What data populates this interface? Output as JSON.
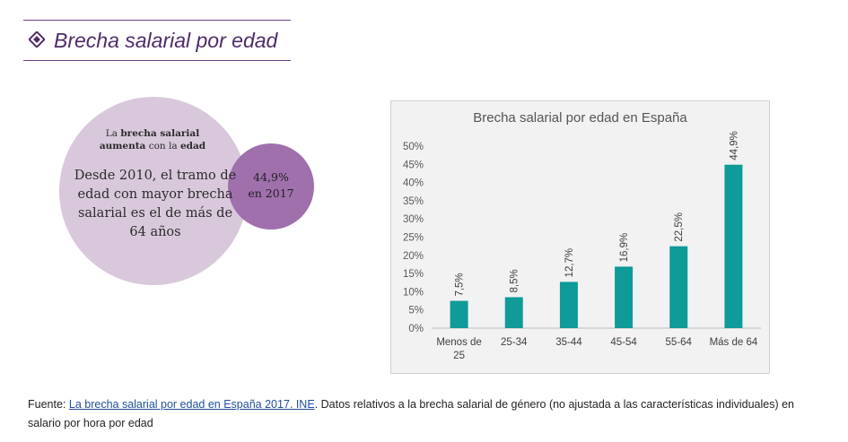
{
  "section": {
    "title": "Brecha salarial por edad",
    "accent_color": "#4f2c69",
    "icon": "diamond-icon"
  },
  "bubble": {
    "heading_pre": "La ",
    "heading_bold1": "brecha salarial",
    "heading_bold2": "aumenta",
    "heading_mid": " con la ",
    "heading_bold3": "edad",
    "text": "Desde 2010, el tramo de edad con mayor brecha salarial es el de más de 64 años",
    "stat_value": "44,9%",
    "stat_label": "en 2017",
    "big_color": "#d9c8dc",
    "small_color": "#a070ad"
  },
  "chart_data": {
    "type": "bar",
    "title": "Brecha salarial por edad en España",
    "categories": [
      [
        "Menos de",
        "25"
      ],
      [
        "25-34"
      ],
      [
        "35-44"
      ],
      [
        "45-54"
      ],
      [
        "55-64"
      ],
      [
        "Más de 64"
      ]
    ],
    "values": [
      7.5,
      8.5,
      12.7,
      16.9,
      22.5,
      44.9
    ],
    "data_labels": [
      "7,5%",
      "8,5%",
      "12,7%",
      "16,9%",
      "22,5%",
      "44,9%"
    ],
    "y_ticks": [
      "0%",
      "5%",
      "10%",
      "15%",
      "20%",
      "25%",
      "30%",
      "35%",
      "40%",
      "45%",
      "50%"
    ],
    "ylim": [
      0,
      50
    ],
    "bar_color": "#0f9b98",
    "grid": false,
    "legend": "none"
  },
  "footer": {
    "prefix": "Fuente: ",
    "link_text": "La brecha salarial por edad en España 2017. INE",
    "suffix": ". Datos relativos a la brecha salarial de género (no ajustada a las características individuales) en salario por hora por edad"
  }
}
